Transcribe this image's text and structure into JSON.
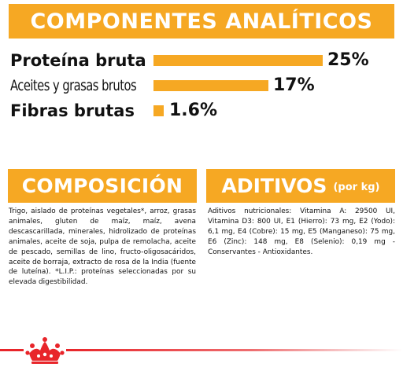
{
  "analytics": {
    "title": "COMPONENTES ANALÍTICOS",
    "rows": [
      {
        "label": "Proteína bruta",
        "value": "25%",
        "fraction": 0.25
      },
      {
        "label": "Aceites y grasas brutos",
        "value": "17%",
        "fraction": 0.17
      },
      {
        "label": "Fibras brutas",
        "value": "1.6%",
        "fraction": 0.016
      }
    ]
  },
  "composition": {
    "title": "COMPOSICIÓN",
    "text": "Trigo, aislado de proteínas vegetales*, arroz, grasas animales, gluten de maíz, maíz, avena descascarillada, minerales, hidrolizado de proteínas animales, aceite de soja, pulpa de remolacha, aceite de pescado, semillas de lino, fructo-oligosacáridos, aceite de borraja, extracto de rosa de la India (fuente de luteína). *L.I.P.: proteínas seleccionadas por su elevada digestibilidad."
  },
  "additives": {
    "title": "ADITIVOS",
    "title_suffix": "(por kg)",
    "text": "Aditivos nutricionales: Vitamina A: 29500 UI, Vitamina D3: 800 UI, E1 (Hierro): 73 mg, E2 (Yodo): 6,1 mg, E4 (Cobre): 15 mg, E5 (Manganeso): 75 mg, E6 (Zinc): 148 mg, E8 (Selenio): 0,19 mg - Conservantes - Antioxidantes."
  },
  "colors": {
    "accent": "#f6a823",
    "brand_red": "#e8252a",
    "text": "#111111"
  },
  "icons": {
    "footer_logo": "crown-icon"
  }
}
